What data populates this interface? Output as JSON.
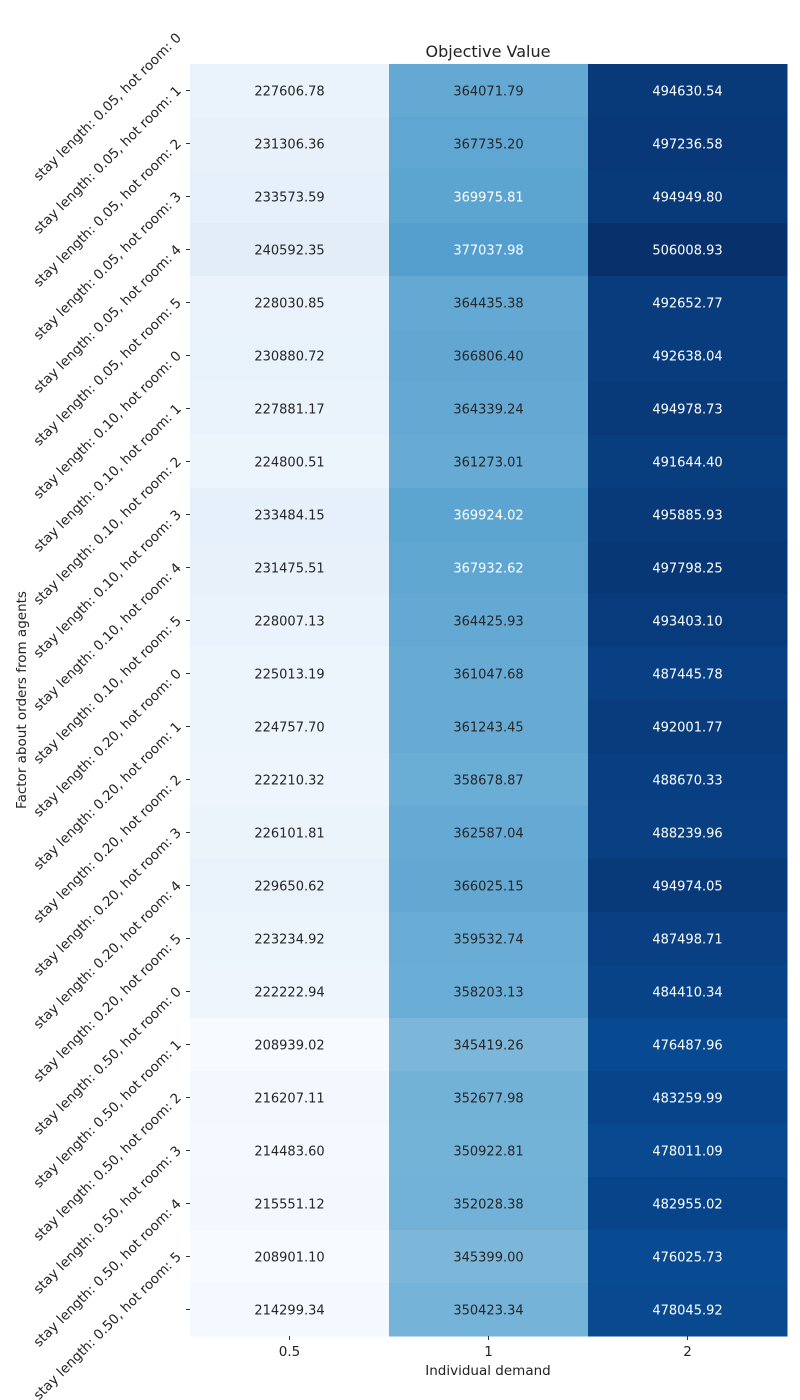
{
  "chart_data": {
    "type": "heatmap",
    "title": "Objective Value",
    "xlabel": "Individual demand",
    "ylabel": "Factor about orders from agents",
    "colormap": "Blues",
    "grid": false,
    "colorbar": false,
    "x_categories": [
      "0.5",
      "1",
      "2"
    ],
    "y_tick_labels": [
      "stay length: 0.05, hot room: 0",
      "stay length: 0.05, hot room: 1",
      "stay length: 0.05, hot room: 2",
      "stay length: 0.05, hot room: 3",
      "stay length: 0.05, hot room: 4",
      "stay length: 0.05, hot room: 5",
      "stay length: 0.10, hot room: 0",
      "stay length: 0.10, hot room: 1",
      "stay length: 0.10, hot room: 2",
      "stay length: 0.10, hot room: 3",
      "stay length: 0.10, hot room: 4",
      "stay length: 0.10, hot room: 5",
      "stay length: 0.20, hot room: 0",
      "stay length: 0.20, hot room: 1",
      "stay length: 0.20, hot room: 2",
      "stay length: 0.20, hot room: 3",
      "stay length: 0.20, hot room: 4",
      "stay length: 0.20, hot room: 5",
      "stay length: 0.50, hot room: 0",
      "stay length: 0.50, hot room: 1",
      "stay length: 0.50, hot room: 2",
      "stay length: 0.50, hot room: 3",
      "stay length: 0.50, hot room: 4",
      "stay length: 0.50, hot room: 5"
    ],
    "values": [
      [
        "227606.78",
        "364071.79",
        "494630.54"
      ],
      [
        "231306.36",
        "367735.20",
        "497236.58"
      ],
      [
        "233573.59",
        "369975.81",
        "494949.80"
      ],
      [
        "240592.35",
        "377037.98",
        "506008.93"
      ],
      [
        "228030.85",
        "364435.38",
        "492652.77"
      ],
      [
        "230880.72",
        "366806.40",
        "492638.04"
      ],
      [
        "227881.17",
        "364339.24",
        "494978.73"
      ],
      [
        "224800.51",
        "361273.01",
        "491644.40"
      ],
      [
        "233484.15",
        "369924.02",
        "495885.93"
      ],
      [
        "231475.51",
        "367932.62",
        "497798.25"
      ],
      [
        "228007.13",
        "364425.93",
        "493403.10"
      ],
      [
        "225013.19",
        "361047.68",
        "487445.78"
      ],
      [
        "224757.70",
        "361243.45",
        "492001.77"
      ],
      [
        "222210.32",
        "358678.87",
        "488670.33"
      ],
      [
        "226101.81",
        "362587.04",
        "488239.96"
      ],
      [
        "229650.62",
        "366025.15",
        "494974.05"
      ],
      [
        "223234.92",
        "359532.74",
        "487498.71"
      ],
      [
        "222222.94",
        "358203.13",
        "484410.34"
      ],
      [
        "208939.02",
        "345419.26",
        "476487.96"
      ],
      [
        "216207.11",
        "352677.98",
        "483259.99"
      ],
      [
        "214483.60",
        "350922.81",
        "478011.09"
      ],
      [
        "215551.12",
        "352028.38",
        "482955.02"
      ],
      [
        "208901.10",
        "345399.00",
        "476025.73"
      ],
      [
        "214299.34",
        "350423.34",
        "478045.92"
      ]
    ]
  }
}
